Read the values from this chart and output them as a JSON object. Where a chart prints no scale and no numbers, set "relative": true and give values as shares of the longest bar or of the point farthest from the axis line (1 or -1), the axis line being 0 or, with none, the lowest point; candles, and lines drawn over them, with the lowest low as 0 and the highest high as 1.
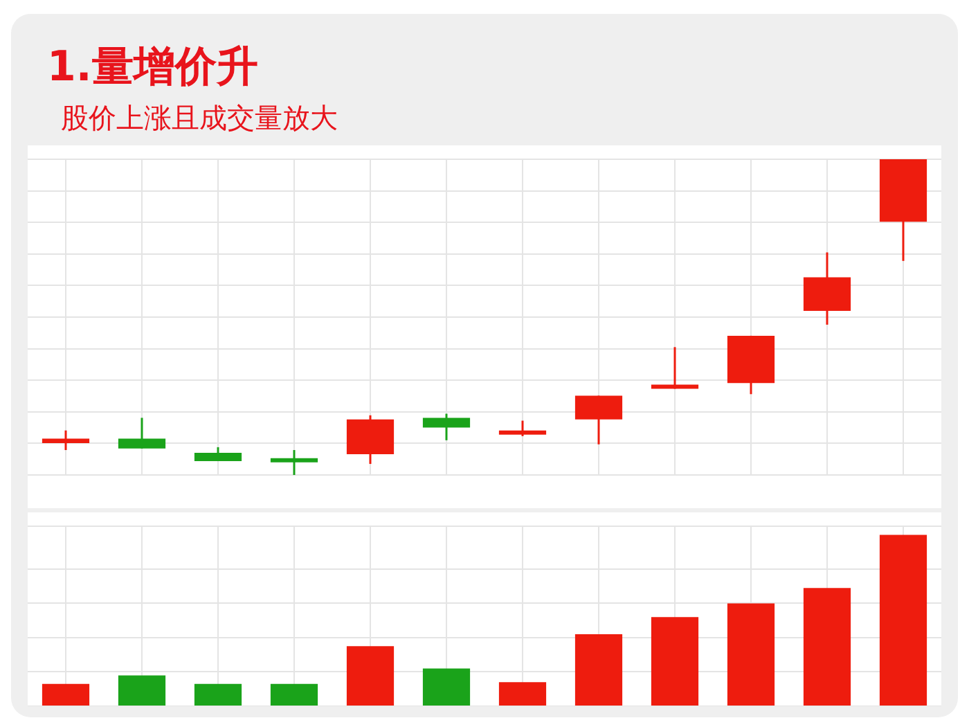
{
  "chart_data": [
    {
      "type": "candlestick",
      "title": "1.量增价升",
      "subtitle": "股价上涨且成交量放大",
      "relative": true,
      "grid": true,
      "tick_labels": false,
      "categories": [
        null,
        null,
        null,
        null,
        null,
        null,
        null,
        null,
        null,
        null,
        null,
        null
      ],
      "ohlc": [
        [
          0.101,
          0.141,
          0.079,
          0.115
        ],
        [
          0.115,
          0.181,
          0.084,
          0.084
        ],
        [
          0.07,
          0.088,
          0.044,
          0.044
        ],
        [
          0.053,
          0.079,
          0,
          0.04
        ],
        [
          0.066,
          0.189,
          0.035,
          0.176
        ],
        [
          0.181,
          0.194,
          0.11,
          0.15
        ],
        [
          0.128,
          0.172,
          0.123,
          0.141
        ],
        [
          0.176,
          0.251,
          0.097,
          0.251
        ],
        [
          0.273,
          0.405,
          0.273,
          0.286
        ],
        [
          0.291,
          0.441,
          0.256,
          0.441
        ],
        [
          0.52,
          0.705,
          0.476,
          0.626
        ],
        [
          0.802,
          1,
          0.678,
          1
        ]
      ],
      "colors": [
        "#ee1c0e",
        "#1aa31a",
        "#1aa31a",
        "#1aa31a",
        "#ee1c0e",
        "#1aa31a",
        "#ee1c0e",
        "#ee1c0e",
        "#ee1c0e",
        "#ee1c0e",
        "#ee1c0e",
        "#ee1c0e"
      ]
    },
    {
      "type": "bar",
      "relative": true,
      "grid": true,
      "tick_labels": false,
      "categories": [
        null,
        null,
        null,
        null,
        null,
        null,
        null,
        null,
        null,
        null,
        null,
        null
      ],
      "values": [
        0.13,
        0.18,
        0.13,
        0.13,
        0.35,
        0.22,
        0.14,
        0.42,
        0.52,
        0.6,
        0.69,
        1
      ],
      "colors": [
        "#ee1c0e",
        "#1aa31a",
        "#1aa31a",
        "#1aa31a",
        "#ee1c0e",
        "#1aa31a",
        "#ee1c0e",
        "#ee1c0e",
        "#ee1c0e",
        "#ee1c0e",
        "#ee1c0e",
        "#ee1c0e"
      ]
    }
  ]
}
